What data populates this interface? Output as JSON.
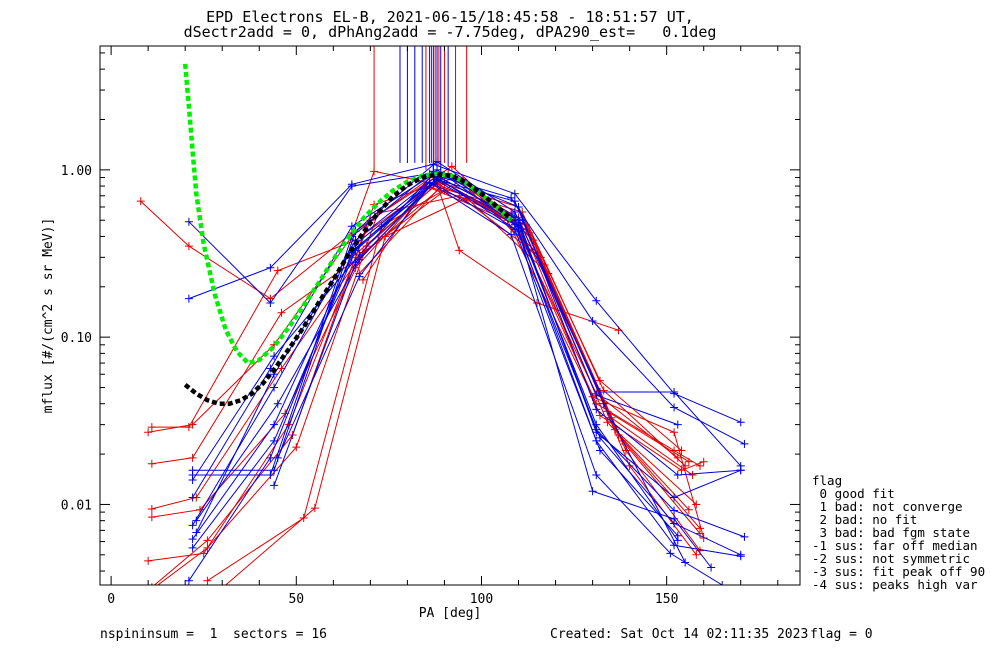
{
  "title_lines": [
    "EPD Electrons EL-B, 2021-06-15/18:45:58 - 18:51:57 UT,",
    "dSectr2add = 0, dPhAng2add = -7.75deg, dPA290_est=   0.1deg"
  ],
  "footer": {
    "left": "nspininsum =  1  sectors = 16",
    "created": "Created: Sat Oct 14 02:11:35 2023",
    "flag": "flag = 0"
  },
  "legend": {
    "title": "flag",
    "items": [
      " 0 good fit",
      " 1 bad: not converge",
      " 2 bad: no fit",
      " 3 bad: bad fgm state",
      "-1 sus: far off median",
      "-2 sus: not symmetric",
      "-3 sus: fit peak off 90",
      "-4 sus: peaks high var"
    ]
  },
  "colors": {
    "red": "#e60000",
    "blue": "#0000e6",
    "green": "#00ee00",
    "black": "#000000"
  },
  "chart_data": {
    "type": "line",
    "xlabel": "PA [deg]",
    "ylabel": "mflux [#/(cm^2 s sr MeV)]",
    "xlim": [
      -3,
      186
    ],
    "ylim": [
      0.0033,
      5.5
    ],
    "yscale": "log",
    "xticks": [
      0,
      50,
      100,
      150
    ],
    "xtick_labels": [
      "0",
      "50",
      "100",
      "150"
    ],
    "yticks": [
      0.01,
      0.1,
      1.0
    ],
    "ytick_labels": [
      "0.01",
      "0.10",
      "1.00"
    ],
    "grid": false,
    "series": [
      {
        "color": "red",
        "x": [
          8,
          21,
          43,
          65,
          71,
          88,
          94,
          115,
          137
        ],
        "y": [
          0.65,
          0.35,
          0.17,
          0.42,
          0.98,
          0.82,
          0.33,
          0.16,
          0.11
        ]
      },
      {
        "color": "red",
        "x": [
          10,
          22,
          44,
          66,
          87,
          109,
          131,
          153
        ],
        "y": [
          0.027,
          0.03,
          0.09,
          0.43,
          0.92,
          0.47,
          0.046,
          0.019
        ]
      },
      {
        "color": "red",
        "x": [
          11,
          21,
          45,
          66,
          88,
          110,
          132,
          154
        ],
        "y": [
          0.029,
          0.029,
          0.25,
          0.38,
          0.85,
          0.6,
          0.055,
          0.021
        ]
      },
      {
        "color": "red",
        "x": [
          11,
          22,
          46,
          67,
          89,
          111,
          133,
          155
        ],
        "y": [
          0.0175,
          0.019,
          0.14,
          0.3,
          0.78,
          0.56,
          0.048,
          0.017
        ]
      },
      {
        "color": "red",
        "x": [
          11,
          23,
          46,
          68,
          90,
          112,
          134,
          156
        ],
        "y": [
          0.0094,
          0.011,
          0.065,
          0.32,
          0.75,
          0.47,
          0.036,
          0.018
        ]
      },
      {
        "color": "red",
        "x": [
          11,
          24,
          47,
          69,
          91,
          113,
          135,
          157
        ],
        "y": [
          0.0084,
          0.0093,
          0.035,
          0.35,
          0.95,
          0.42,
          0.033,
          0.015
        ]
      },
      {
        "color": "red",
        "x": [
          10,
          25,
          48,
          70,
          92,
          114,
          136,
          158
        ],
        "y": [
          0.0046,
          0.0051,
          0.03,
          0.5,
          1.05,
          0.38,
          0.028,
          0.01
        ]
      },
      {
        "color": "red",
        "x": [
          11,
          26,
          49,
          71,
          93,
          115,
          137,
          159
        ],
        "y": [
          0.0032,
          0.0061,
          0.026,
          0.62,
          0.9,
          0.32,
          0.026,
          0.0072
        ]
      },
      {
        "color": "red",
        "x": [
          11,
          26,
          50,
          72,
          94,
          116,
          138,
          159
        ],
        "y": [
          0.0031,
          0.0055,
          0.022,
          0.55,
          0.7,
          0.3,
          0.024,
          0.0067
        ]
      },
      {
        "color": "red",
        "x": [
          26,
          52,
          73,
          95,
          117,
          139,
          159
        ],
        "y": [
          0.0035,
          0.0083,
          0.46,
          0.88,
          0.27,
          0.021,
          0.0053
        ]
      },
      {
        "color": "red",
        "x": [
          28,
          55,
          74,
          96,
          118,
          140,
          158
        ],
        "y": [
          0.0029,
          0.0095,
          0.4,
          0.68,
          0.24,
          0.017,
          0.005
        ]
      },
      {
        "color": "red",
        "x": [
          65,
          88,
          110,
          132,
          154,
          160
        ],
        "y": [
          0.3,
          0.82,
          0.52,
          0.034,
          0.016,
          0.018
        ]
      },
      {
        "color": "red",
        "x": [
          66,
          86,
          108,
          131,
          152,
          159
        ],
        "y": [
          0.26,
          0.79,
          0.55,
          0.04,
          0.021,
          0.017
        ]
      },
      {
        "color": "red",
        "x": [
          67,
          90,
          112,
          134,
          156
        ],
        "y": [
          0.24,
          0.84,
          0.44,
          0.031,
          0.0093
        ]
      },
      {
        "color": "red",
        "x": [
          68,
          85,
          107,
          130,
          152,
          160
        ],
        "y": [
          0.22,
          0.8,
          0.5,
          0.044,
          0.027,
          0.0063
        ]
      },
      {
        "color": "blue",
        "x": [
          21,
          43,
          65,
          87,
          109,
          131,
          152,
          170
        ],
        "y": [
          0.17,
          0.26,
          0.82,
          1.08,
          0.72,
          0.165,
          0.046,
          0.031
        ]
      },
      {
        "color": "blue",
        "x": [
          21,
          43,
          65,
          86,
          108,
          130,
          152,
          171
        ],
        "y": [
          0.49,
          0.16,
          0.8,
          0.95,
          0.68,
          0.125,
          0.038,
          0.023
        ]
      },
      {
        "color": "blue",
        "x": [
          22,
          44,
          66,
          88,
          109,
          132,
          152,
          170
        ],
        "y": [
          0.016,
          0.016,
          0.43,
          1.12,
          0.56,
          0.047,
          0.047,
          0.017
        ]
      },
      {
        "color": "blue",
        "x": [
          22,
          43,
          65,
          87,
          110,
          131,
          153,
          170
        ],
        "y": [
          0.015,
          0.015,
          0.4,
          0.98,
          0.6,
          0.037,
          0.015,
          0.016
        ]
      },
      {
        "color": "blue",
        "x": [
          22,
          44,
          66,
          88,
          110,
          131,
          152,
          170
        ],
        "y": [
          0.0075,
          0.05,
          0.38,
          0.92,
          0.5,
          0.027,
          0.011,
          0.016
        ]
      },
      {
        "color": "blue",
        "x": [
          23,
          44,
          66,
          88,
          110,
          131,
          152,
          171
        ],
        "y": [
          0.0068,
          0.06,
          0.36,
          0.88,
          0.48,
          0.028,
          0.0092,
          0.0064
        ]
      },
      {
        "color": "blue",
        "x": [
          22,
          44,
          66,
          88,
          109,
          132,
          152,
          170
        ],
        "y": [
          0.0062,
          0.03,
          0.34,
          0.86,
          0.47,
          0.025,
          0.0077,
          0.005
        ]
      },
      {
        "color": "blue",
        "x": [
          22,
          44,
          66,
          87,
          109,
          131,
          152,
          170
        ],
        "y": [
          0.0055,
          0.024,
          0.33,
          0.83,
          0.44,
          0.024,
          0.0057,
          0.0049
        ]
      },
      {
        "color": "blue",
        "x": [
          21,
          43,
          65,
          86,
          108,
          131,
          151,
          165
        ],
        "y": [
          0.0035,
          0.019,
          0.32,
          0.84,
          0.41,
          0.015,
          0.0051,
          0.0033
        ]
      },
      {
        "color": "blue",
        "x": [
          22,
          43,
          65,
          87,
          109,
          130,
          152,
          162
        ],
        "y": [
          0.011,
          0.065,
          0.46,
          0.94,
          0.52,
          0.012,
          0.0082,
          0.0042
        ]
      },
      {
        "color": "blue",
        "x": [
          22,
          44,
          67,
          88,
          110,
          131,
          153
        ],
        "y": [
          0.014,
          0.077,
          0.31,
          1.0,
          0.46,
          0.03,
          0.0061
        ]
      },
      {
        "color": "blue",
        "x": [
          23,
          45,
          67,
          88,
          110,
          132,
          153
        ],
        "y": [
          0.008,
          0.04,
          0.29,
          0.9,
          0.43,
          0.021,
          0.0065
        ]
      },
      {
        "color": "blue",
        "x": [
          44,
          66,
          88,
          109,
          131,
          153
        ],
        "y": [
          0.013,
          0.28,
          0.87,
          0.65,
          0.045,
          0.03
        ]
      },
      {
        "color": "blue",
        "x": [
          45,
          67,
          89,
          111,
          133,
          155
        ],
        "y": [
          0.019,
          0.23,
          0.97,
          0.5,
          0.04,
          0.0045
        ]
      },
      {
        "color": "green",
        "style": "dashed",
        "x": [
          20,
          21,
          22,
          23,
          25,
          28,
          31,
          34,
          37,
          40,
          44,
          48,
          52,
          56,
          60,
          64,
          68,
          72,
          76,
          80,
          84,
          88,
          92,
          96,
          100,
          104,
          108
        ],
        "y": [
          4.3,
          2.4,
          1.3,
          0.72,
          0.36,
          0.18,
          0.11,
          0.082,
          0.07,
          0.073,
          0.088,
          0.115,
          0.155,
          0.21,
          0.29,
          0.39,
          0.51,
          0.63,
          0.75,
          0.85,
          0.92,
          0.95,
          0.92,
          0.83,
          0.71,
          0.6,
          0.5
        ]
      },
      {
        "color": "black",
        "style": "dashed",
        "x": [
          20,
          23,
          26,
          29,
          32,
          35,
          38,
          41,
          44,
          48,
          52,
          56,
          60,
          64,
          68,
          72,
          76,
          80,
          84,
          88,
          92,
          96,
          100,
          104,
          108
        ],
        "y": [
          0.052,
          0.046,
          0.042,
          0.04,
          0.04,
          0.042,
          0.046,
          0.053,
          0.064,
          0.085,
          0.115,
          0.16,
          0.22,
          0.31,
          0.42,
          0.55,
          0.69,
          0.81,
          0.9,
          0.94,
          0.92,
          0.84,
          0.72,
          0.61,
          0.51
        ]
      }
    ],
    "spikes": [
      {
        "color": "red",
        "x": 71,
        "y_top": 5.5,
        "y_bottom": 1.0
      },
      {
        "color": "blue",
        "x": 78,
        "y_top": 5.5,
        "y_bottom": 1.1
      },
      {
        "color": "blue",
        "x": 80,
        "y_top": 5.5,
        "y_bottom": 1.1
      },
      {
        "color": "blue",
        "x": 82,
        "y_top": 5.5,
        "y_bottom": 1.1
      },
      {
        "color": "blue",
        "x": 84,
        "y_top": 5.5,
        "y_bottom": 1.1
      },
      {
        "color": "red",
        "x": 85,
        "y_top": 5.5,
        "y_bottom": 1.0
      },
      {
        "color": "blue",
        "x": 86,
        "y_top": 5.5,
        "y_bottom": 1.1
      },
      {
        "color": "red",
        "x": 86.5,
        "y_top": 5.5,
        "y_bottom": 1.1
      },
      {
        "color": "blue",
        "x": 87,
        "y_top": 5.5,
        "y_bottom": 1.0
      },
      {
        "color": "red",
        "x": 87.5,
        "y_top": 5.5,
        "y_bottom": 1.1
      },
      {
        "color": "blue",
        "x": 88,
        "y_top": 5.5,
        "y_bottom": 1.05
      },
      {
        "color": "red",
        "x": 88.5,
        "y_top": 5.5,
        "y_bottom": 1.05
      },
      {
        "color": "blue",
        "x": 89,
        "y_top": 5.5,
        "y_bottom": 1.0
      },
      {
        "color": "red",
        "x": 90,
        "y_top": 5.5,
        "y_bottom": 1.1
      },
      {
        "color": "blue",
        "x": 91,
        "y_top": 5.5,
        "y_bottom": 1.05
      },
      {
        "color": "red",
        "x": 93,
        "y_top": 5.5,
        "y_bottom": 1.0
      },
      {
        "color": "red",
        "x": 96,
        "y_top": 5.5,
        "y_bottom": 1.1
      }
    ]
  }
}
